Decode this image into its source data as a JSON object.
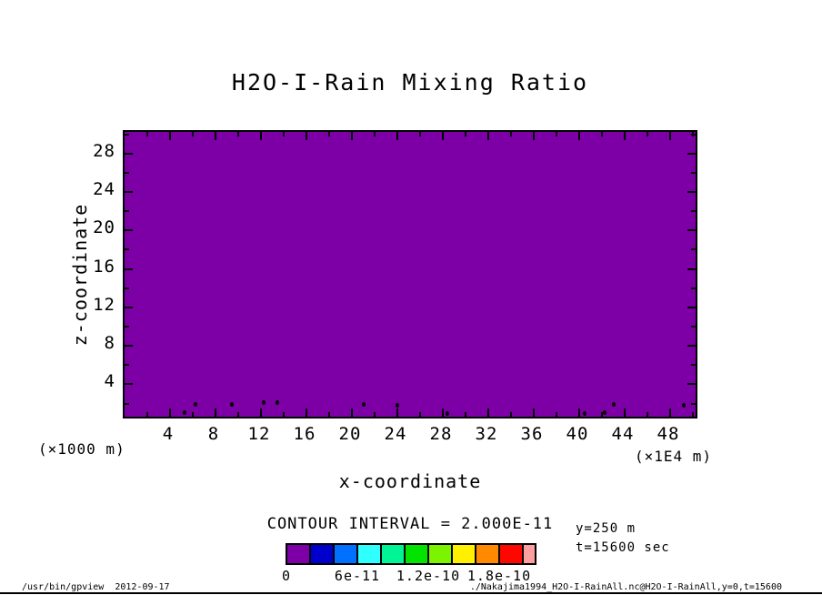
{
  "title": "H2O-I-Rain Mixing Ratio",
  "axes": {
    "x": {
      "label": "x-coordinate",
      "unit_label": "(×1E4 m)"
    },
    "z": {
      "label": "z-coordinate",
      "unit_label": "(×1000 m)"
    }
  },
  "legend": {
    "contour_interval_label": "CONTOUR INTERVAL = 2.000E-11"
  },
  "annotations": {
    "y_slice": "y=250 m",
    "t_slice": "t=15600 sec"
  },
  "footer": {
    "left": "/usr/bin/gpview  2012-09-17",
    "right": "./Nakajima1994_H2O-I-RainAll.nc@H2O-I-RainAll,y=0,t=15600"
  },
  "chart_data": {
    "type": "heatmap",
    "title": "H2O-I-Rain Mixing Ratio",
    "xlabel": "x-coordinate",
    "ylabel": "z-coordinate",
    "x_unit": "x1E4 m",
    "y_unit": "x1000 m",
    "xlim": [
      0,
      50.56
    ],
    "ylim": [
      0.25,
      30.25
    ],
    "x_major_ticks": [
      4,
      8,
      12,
      16,
      20,
      24,
      28,
      32,
      36,
      40,
      44,
      48
    ],
    "x_minor_ticks": [
      2,
      6,
      10,
      14,
      18,
      22,
      26,
      30,
      34,
      38,
      42,
      46,
      50
    ],
    "y_major_ticks": [
      4,
      8,
      12,
      16,
      20,
      24,
      28
    ],
    "y_minor_ticks": [
      2,
      6,
      10,
      14,
      18,
      22,
      26,
      30
    ],
    "grid": false,
    "contour_interval": 2e-11,
    "levels": [
      0,
      2e-11,
      4e-11,
      6e-11,
      8e-11,
      1e-10,
      1.2e-10,
      1.4e-10,
      1.6e-10,
      1.8e-10,
      2e-10
    ],
    "fill_color_lowest_bin": "#7C00A6",
    "colorbar_colors": [
      "#7C00A6",
      "#0000CD",
      "#0070FF",
      "#2FFFFF",
      "#00F596",
      "#00E400",
      "#7CF400",
      "#FFF000",
      "#FF8A00",
      "#FF0700",
      "#FF9E9E"
    ],
    "colorbar_tick_labels": [
      {
        "text": "0",
        "cell_boundary": 0
      },
      {
        "text": "6e-11",
        "cell_boundary": 3
      },
      {
        "text": "1.2e-10",
        "cell_boundary": 6
      },
      {
        "text": "1.8e-10",
        "cell_boundary": 9
      }
    ],
    "field_summary": "entire plotted field lies in the lowest contour bin (0 to 2e-11), rendered purple, with a few tiny speck contours near the bottom boundary",
    "speck_points_x_z": [
      [
        5.3,
        1.1
      ],
      [
        6.2,
        2.0
      ],
      [
        9.4,
        2.0
      ],
      [
        12.2,
        2.1
      ],
      [
        13.4,
        2.1
      ],
      [
        21.0,
        2.0
      ],
      [
        24.0,
        1.9
      ],
      [
        28.4,
        1.0
      ],
      [
        40.5,
        1.0
      ],
      [
        42.2,
        1.1
      ],
      [
        43.0,
        2.0
      ],
      [
        49.2,
        1.9
      ]
    ]
  }
}
